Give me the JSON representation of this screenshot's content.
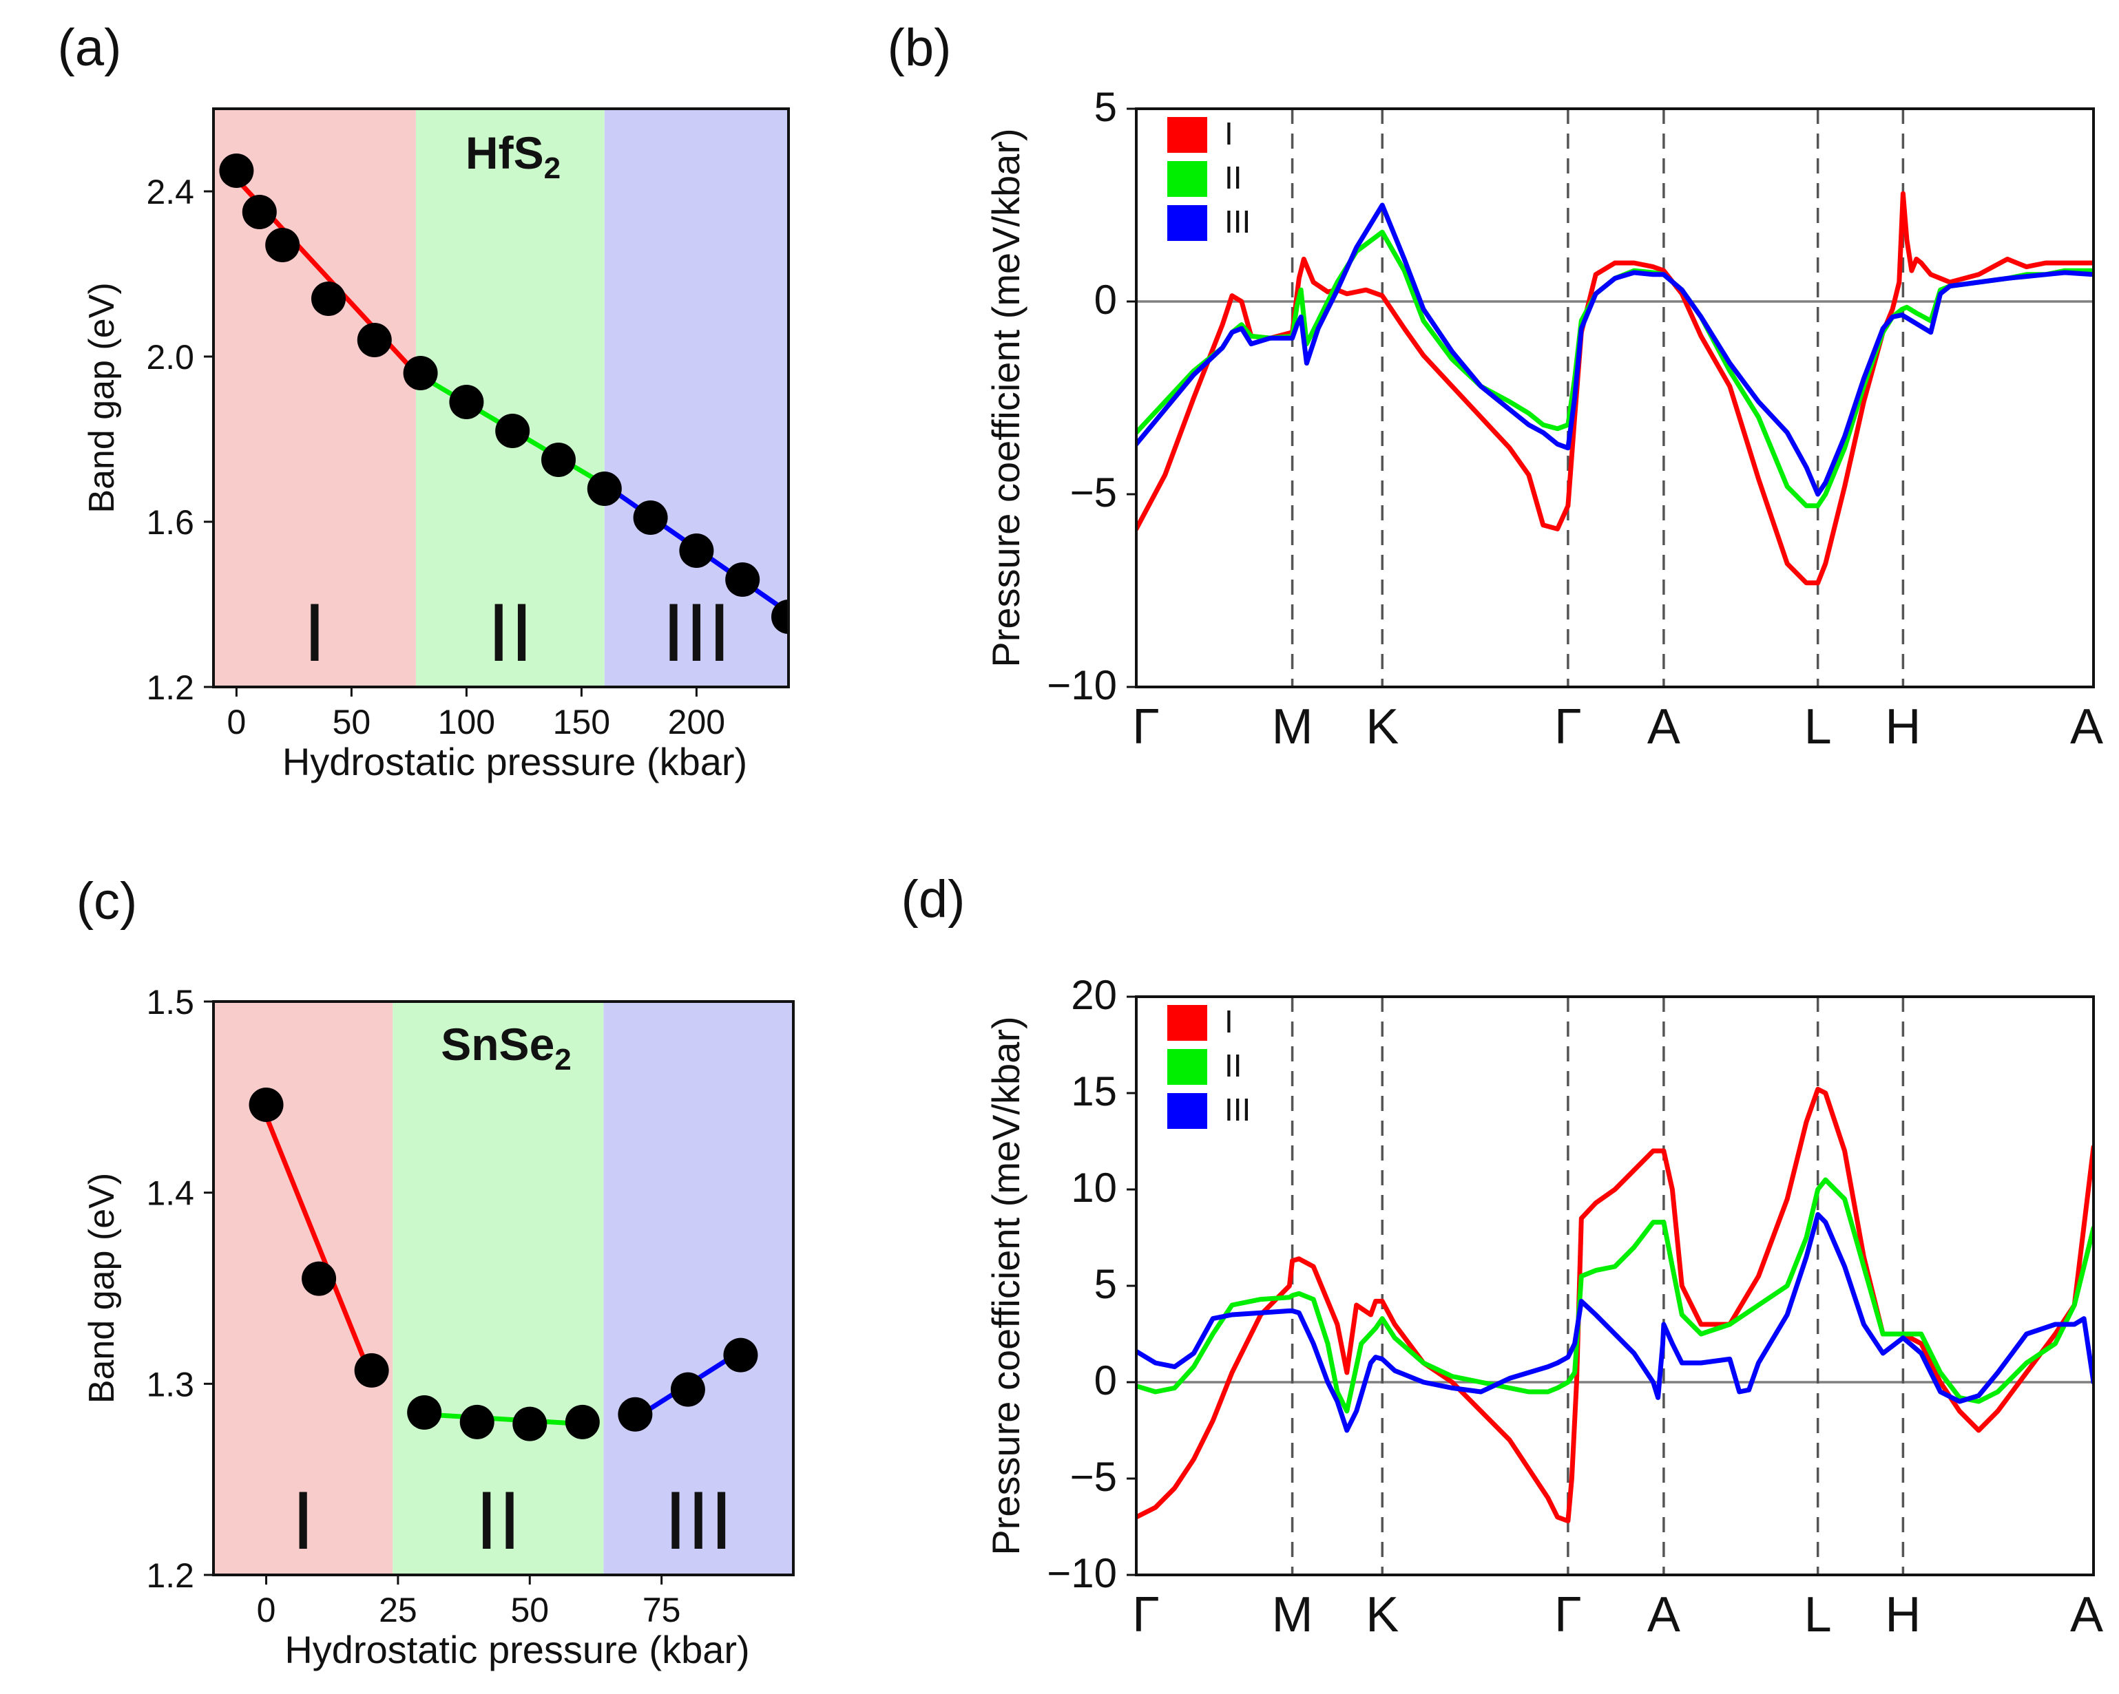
{
  "chart_data": [
    {
      "panel_label": "(a)",
      "type": "scatter",
      "title": "HfS",
      "title_sub": "2",
      "xlabel": "Hydrostatic pressure (kbar)",
      "ylabel": "Band gap (eV)",
      "xlim": [
        -10,
        240
      ],
      "ylim": [
        1.2,
        2.6
      ],
      "xticks": [
        0,
        50,
        100,
        150,
        200
      ],
      "yticks": [
        1.2,
        1.6,
        2.0,
        2.4
      ],
      "regions": [
        {
          "label": "I",
          "x": [
            -10,
            78
          ],
          "color": "#f9cccc"
        },
        {
          "label": "II",
          "x": [
            78,
            160
          ],
          "color": "#ccf9cc"
        },
        {
          "label": "III",
          "x": [
            160,
            240
          ],
          "color": "#ccccf9"
        }
      ],
      "points": {
        "x": [
          0,
          10,
          20,
          40,
          60,
          80,
          100,
          120,
          140,
          160,
          180,
          200,
          220,
          240
        ],
        "y": [
          2.45,
          2.35,
          2.27,
          2.14,
          2.04,
          1.96,
          1.89,
          1.82,
          1.75,
          1.68,
          1.61,
          1.53,
          1.46,
          1.37
        ]
      },
      "fits": [
        {
          "name": "I",
          "color": "#ff0000",
          "x": [
            0,
            78
          ],
          "y": [
            2.43,
            1.96
          ]
        },
        {
          "name": "II",
          "color": "#00ee00",
          "x": [
            78,
            160
          ],
          "y": [
            1.96,
            1.69
          ]
        },
        {
          "name": "III",
          "color": "#0000ff",
          "x": [
            160,
            240
          ],
          "y": [
            1.69,
            1.38
          ]
        }
      ]
    },
    {
      "panel_label": "(b)",
      "type": "line",
      "ylabel": "Pressure coefficient (meV/kbar)",
      "ylim": [
        -10,
        5
      ],
      "yticks": [
        -10,
        -5,
        0,
        5
      ],
      "kpath_labels": [
        "Γ",
        "M",
        "K",
        "Γ",
        "A",
        "L",
        "H",
        "A"
      ],
      "kpath_positions": [
        0,
        0.163,
        0.257,
        0.451,
        0.551,
        0.712,
        0.801,
        1.0
      ],
      "legend": [
        "I",
        "II",
        "III"
      ],
      "series": [
        {
          "name": "I",
          "color": "#ff0000",
          "x": [
            0,
            0.03,
            0.06,
            0.09,
            0.1,
            0.11,
            0.12,
            0.14,
            0.163,
            0.17,
            0.175,
            0.185,
            0.2,
            0.21,
            0.22,
            0.23,
            0.24,
            0.257,
            0.28,
            0.3,
            0.33,
            0.36,
            0.39,
            0.41,
            0.425,
            0.44,
            0.451,
            0.458,
            0.465,
            0.48,
            0.5,
            0.52,
            0.54,
            0.551,
            0.57,
            0.59,
            0.62,
            0.65,
            0.68,
            0.7,
            0.712,
            0.72,
            0.74,
            0.76,
            0.78,
            0.79,
            0.797,
            0.801,
            0.805,
            0.81,
            0.815,
            0.82,
            0.83,
            0.85,
            0.88,
            0.91,
            0.93,
            0.95,
            0.97,
            1.0
          ],
          "y": [
            -5.9,
            -4.5,
            -2.5,
            -0.6,
            0.15,
            0.0,
            -0.9,
            -0.95,
            -0.8,
            0.6,
            1.1,
            0.5,
            0.25,
            0.3,
            0.2,
            0.25,
            0.3,
            0.15,
            -0.7,
            -1.4,
            -2.2,
            -3.0,
            -3.8,
            -4.5,
            -5.8,
            -5.9,
            -5.3,
            -3.0,
            -0.8,
            0.7,
            1.0,
            1.0,
            0.9,
            0.8,
            0.2,
            -0.9,
            -2.2,
            -4.6,
            -6.8,
            -7.3,
            -7.3,
            -6.8,
            -4.8,
            -2.6,
            -0.8,
            -0.2,
            0.5,
            2.8,
            1.6,
            0.8,
            1.1,
            1.0,
            0.7,
            0.5,
            0.7,
            1.1,
            0.9,
            1.0,
            1.0,
            1.0
          ]
        },
        {
          "name": "II",
          "color": "#00ee00",
          "x": [
            0,
            0.03,
            0.06,
            0.09,
            0.1,
            0.11,
            0.12,
            0.14,
            0.163,
            0.168,
            0.172,
            0.178,
            0.19,
            0.21,
            0.23,
            0.257,
            0.28,
            0.3,
            0.33,
            0.36,
            0.39,
            0.41,
            0.425,
            0.44,
            0.451,
            0.458,
            0.465,
            0.48,
            0.5,
            0.52,
            0.54,
            0.551,
            0.57,
            0.59,
            0.62,
            0.65,
            0.68,
            0.7,
            0.712,
            0.72,
            0.74,
            0.76,
            0.78,
            0.79,
            0.8,
            0.805,
            0.815,
            0.83,
            0.84,
            0.85,
            0.88,
            0.91,
            0.93,
            0.95,
            0.97,
            1.0
          ],
          "y": [
            -3.4,
            -2.6,
            -1.8,
            -1.2,
            -0.8,
            -0.6,
            -0.9,
            -0.95,
            -0.9,
            -0.1,
            0.3,
            -1.1,
            -0.5,
            0.5,
            1.3,
            1.8,
            0.8,
            -0.5,
            -1.5,
            -2.2,
            -2.6,
            -2.9,
            -3.2,
            -3.3,
            -3.2,
            -2.0,
            -0.5,
            0.2,
            0.6,
            0.8,
            0.75,
            0.7,
            0.3,
            -0.4,
            -1.8,
            -3.0,
            -4.8,
            -5.3,
            -5.3,
            -5.0,
            -3.8,
            -2.2,
            -0.8,
            -0.4,
            -0.2,
            -0.15,
            -0.3,
            -0.5,
            0.3,
            0.4,
            0.5,
            0.6,
            0.7,
            0.7,
            0.8,
            0.8
          ]
        },
        {
          "name": "III",
          "color": "#0000ff",
          "x": [
            0,
            0.03,
            0.06,
            0.09,
            0.1,
            0.11,
            0.12,
            0.14,
            0.163,
            0.168,
            0.172,
            0.178,
            0.19,
            0.21,
            0.23,
            0.257,
            0.28,
            0.3,
            0.33,
            0.36,
            0.39,
            0.41,
            0.425,
            0.44,
            0.451,
            0.458,
            0.465,
            0.48,
            0.5,
            0.52,
            0.54,
            0.551,
            0.57,
            0.59,
            0.62,
            0.65,
            0.68,
            0.7,
            0.712,
            0.72,
            0.74,
            0.76,
            0.78,
            0.79,
            0.8,
            0.81,
            0.83,
            0.84,
            0.85,
            0.88,
            0.91,
            0.93,
            0.95,
            0.97,
            1.0
          ],
          "y": [
            -3.7,
            -2.8,
            -1.9,
            -1.2,
            -0.8,
            -0.7,
            -1.1,
            -0.95,
            -0.95,
            -0.6,
            -0.4,
            -1.6,
            -0.7,
            0.3,
            1.4,
            2.5,
            1.1,
            -0.2,
            -1.3,
            -2.2,
            -2.8,
            -3.2,
            -3.4,
            -3.7,
            -3.8,
            -2.5,
            -0.7,
            0.2,
            0.6,
            0.75,
            0.7,
            0.7,
            0.3,
            -0.4,
            -1.6,
            -2.6,
            -3.4,
            -4.3,
            -5.0,
            -4.7,
            -3.5,
            -2.0,
            -0.7,
            -0.4,
            -0.35,
            -0.5,
            -0.8,
            0.2,
            0.4,
            0.5,
            0.6,
            0.65,
            0.7,
            0.75,
            0.7
          ]
        }
      ]
    },
    {
      "panel_label": "(c)",
      "type": "scatter",
      "title": "SnSe",
      "title_sub": "2",
      "xlabel": "Hydrostatic pressure (kbar)",
      "ylabel": "Band gap (eV)",
      "xlim": [
        -10,
        100
      ],
      "ylim": [
        1.2,
        1.5
      ],
      "xticks": [
        0,
        25,
        50,
        75
      ],
      "yticks": [
        1.2,
        1.3,
        1.4,
        1.5
      ],
      "regions": [
        {
          "label": "I",
          "x": [
            -10,
            24
          ],
          "color": "#f9cccc"
        },
        {
          "label": "II",
          "x": [
            24,
            64
          ],
          "color": "#ccf9cc"
        },
        {
          "label": "III",
          "x": [
            64,
            100
          ],
          "color": "#ccccf9"
        }
      ],
      "points": {
        "x": [
          0,
          10,
          20,
          30,
          40,
          50,
          60,
          70,
          80,
          90
        ],
        "y": [
          1.446,
          1.355,
          1.307,
          1.285,
          1.28,
          1.279,
          1.28,
          1.284,
          1.297,
          1.315
        ]
      },
      "fits": [
        {
          "name": "I",
          "color": "#ff0000",
          "x": [
            0,
            20
          ],
          "y": [
            1.44,
            1.303
          ]
        },
        {
          "name": "II",
          "color": "#00ee00",
          "x": [
            30,
            60
          ],
          "y": [
            1.284,
            1.279
          ]
        },
        {
          "name": "III",
          "color": "#0000ff",
          "x": [
            70,
            90
          ],
          "y": [
            1.282,
            1.317
          ]
        }
      ]
    },
    {
      "panel_label": "(d)",
      "type": "line",
      "ylabel": "Pressure coefficient (meV/kbar)",
      "ylim": [
        -10,
        20
      ],
      "yticks": [
        -10,
        -5,
        0,
        5,
        10,
        15,
        20
      ],
      "kpath_labels": [
        "Γ",
        "M",
        "K",
        "Γ",
        "A",
        "L",
        "H",
        "A"
      ],
      "kpath_positions": [
        0,
        0.163,
        0.257,
        0.451,
        0.551,
        0.712,
        0.801,
        1.0
      ],
      "legend": [
        "I",
        "II",
        "III"
      ],
      "series": [
        {
          "name": "I",
          "color": "#ff0000",
          "x": [
            0,
            0.02,
            0.04,
            0.06,
            0.08,
            0.1,
            0.13,
            0.16,
            0.163,
            0.17,
            0.185,
            0.21,
            0.22,
            0.23,
            0.245,
            0.25,
            0.257,
            0.27,
            0.3,
            0.33,
            0.36,
            0.39,
            0.41,
            0.43,
            0.44,
            0.451,
            0.455,
            0.46,
            0.465,
            0.48,
            0.5,
            0.52,
            0.54,
            0.551,
            0.56,
            0.57,
            0.59,
            0.62,
            0.65,
            0.68,
            0.7,
            0.712,
            0.72,
            0.74,
            0.76,
            0.78,
            0.801,
            0.82,
            0.84,
            0.86,
            0.88,
            0.9,
            0.93,
            0.96,
            0.98,
            1.0
          ],
          "y": [
            -7.0,
            -6.5,
            -5.5,
            -4.0,
            -2.0,
            0.5,
            3.5,
            5.0,
            6.3,
            6.4,
            6.0,
            3.0,
            0.5,
            4.0,
            3.5,
            4.2,
            4.2,
            3.0,
            1.0,
            0.0,
            -1.5,
            -3.0,
            -4.5,
            -6.0,
            -7.0,
            -7.2,
            -5.0,
            0.0,
            8.5,
            9.3,
            10.0,
            11.0,
            12.0,
            12.0,
            10.0,
            5.0,
            3.0,
            3.0,
            5.5,
            9.5,
            13.5,
            15.2,
            15.0,
            12.0,
            6.5,
            2.5,
            2.5,
            2.0,
            0.0,
            -1.5,
            -2.5,
            -1.5,
            0.5,
            2.5,
            4.0,
            12.2
          ]
        },
        {
          "name": "II",
          "color": "#00ee00",
          "x": [
            0,
            0.02,
            0.04,
            0.06,
            0.08,
            0.1,
            0.13,
            0.16,
            0.163,
            0.17,
            0.185,
            0.2,
            0.21,
            0.22,
            0.235,
            0.25,
            0.257,
            0.27,
            0.3,
            0.33,
            0.36,
            0.39,
            0.41,
            0.43,
            0.44,
            0.451,
            0.458,
            0.465,
            0.48,
            0.5,
            0.52,
            0.54,
            0.551,
            0.56,
            0.57,
            0.59,
            0.62,
            0.65,
            0.68,
            0.7,
            0.712,
            0.72,
            0.74,
            0.76,
            0.78,
            0.801,
            0.82,
            0.84,
            0.86,
            0.88,
            0.9,
            0.93,
            0.96,
            0.98,
            1.0
          ],
          "y": [
            -0.2,
            -0.5,
            -0.3,
            0.8,
            2.5,
            4.0,
            4.3,
            4.4,
            4.5,
            4.6,
            4.3,
            2.0,
            -0.5,
            -1.5,
            2.0,
            2.8,
            3.3,
            2.3,
            1.0,
            0.3,
            0.0,
            -0.3,
            -0.5,
            -0.5,
            -0.3,
            0.0,
            0.5,
            5.5,
            5.8,
            6.0,
            7.0,
            8.3,
            8.3,
            6.0,
            3.5,
            2.5,
            3.0,
            4.0,
            5.0,
            7.5,
            10.0,
            10.5,
            9.5,
            6.0,
            2.5,
            2.5,
            2.5,
            0.5,
            -0.8,
            -1.0,
            -0.5,
            1.0,
            2.0,
            4.0,
            8.0
          ]
        },
        {
          "name": "III",
          "color": "#0000ff",
          "x": [
            0,
            0.02,
            0.04,
            0.06,
            0.08,
            0.1,
            0.13,
            0.16,
            0.163,
            0.17,
            0.185,
            0.2,
            0.21,
            0.22,
            0.23,
            0.245,
            0.25,
            0.257,
            0.27,
            0.3,
            0.33,
            0.36,
            0.39,
            0.41,
            0.43,
            0.44,
            0.451,
            0.458,
            0.465,
            0.48,
            0.5,
            0.52,
            0.54,
            0.545,
            0.55,
            0.551,
            0.56,
            0.57,
            0.59,
            0.62,
            0.63,
            0.64,
            0.65,
            0.68,
            0.7,
            0.712,
            0.72,
            0.74,
            0.76,
            0.78,
            0.801,
            0.82,
            0.84,
            0.86,
            0.88,
            0.9,
            0.93,
            0.96,
            0.98,
            0.99,
            1.0
          ],
          "y": [
            1.6,
            1.0,
            0.8,
            1.5,
            3.3,
            3.5,
            3.6,
            3.7,
            3.7,
            3.6,
            2.0,
            0.0,
            -1.0,
            -2.5,
            -1.5,
            1.0,
            1.3,
            1.2,
            0.6,
            0.0,
            -0.3,
            -0.5,
            0.2,
            0.5,
            0.8,
            1.0,
            1.3,
            2.0,
            4.2,
            3.5,
            2.5,
            1.5,
            0.0,
            -0.8,
            2.0,
            3.0,
            2.0,
            1.0,
            1.0,
            1.2,
            -0.5,
            -0.4,
            1.0,
            3.5,
            6.5,
            8.7,
            8.3,
            6.0,
            3.0,
            1.5,
            2.3,
            1.5,
            -0.5,
            -1.0,
            -0.7,
            0.5,
            2.5,
            3.0,
            3.0,
            3.3,
            0.0
          ]
        }
      ]
    }
  ]
}
